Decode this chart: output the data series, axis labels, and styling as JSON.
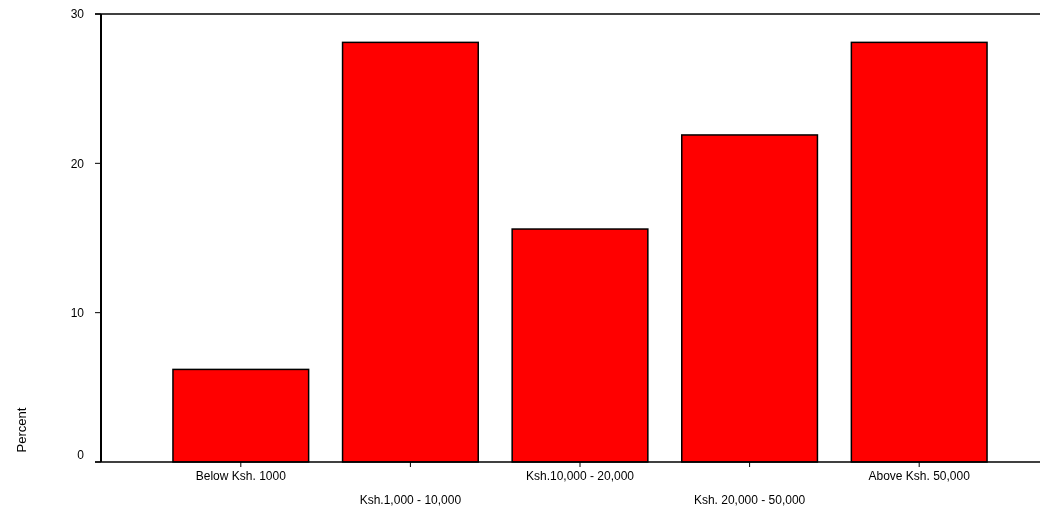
{
  "chart_data": {
    "type": "bar",
    "ylabel": "Percent",
    "categories": [
      "Below Ksh. 1000",
      "Ksh.1,000 - 10,000",
      "Ksh.10,000 - 20,000",
      "Ksh. 20,000 - 50,000",
      "Above Ksh. 50,000"
    ],
    "values": [
      6.2,
      28.1,
      15.6,
      21.9,
      28.1
    ],
    "color": "#ff0000",
    "ylim": [
      0,
      30
    ],
    "yticks": [
      0,
      10,
      20,
      30
    ],
    "grid": false
  }
}
